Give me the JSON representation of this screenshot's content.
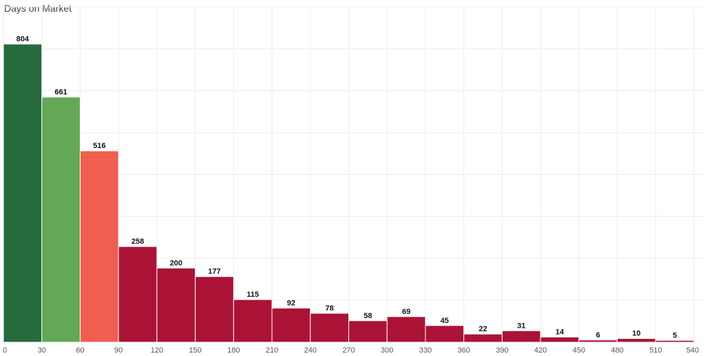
{
  "chart_data": {
    "type": "bar",
    "title": "Days on Market",
    "xlabel": "",
    "ylabel": "",
    "bin_edges": [
      0,
      30,
      60,
      90,
      120,
      150,
      180,
      210,
      240,
      270,
      300,
      330,
      360,
      390,
      420,
      450,
      480,
      510,
      540
    ],
    "values": [
      804,
      661,
      516,
      258,
      200,
      177,
      115,
      92,
      78,
      58,
      69,
      45,
      22,
      31,
      14,
      6,
      10,
      5
    ],
    "bar_colors": [
      "#256b3e",
      "#62a857",
      "#f05e50",
      "#ab1336",
      "#ab1336",
      "#ab1336",
      "#ab1336",
      "#ab1336",
      "#ab1336",
      "#ab1336",
      "#ab1336",
      "#ab1336",
      "#ab1336",
      "#ab1336",
      "#ab1336",
      "#ab1336",
      "#ab1336",
      "#ab1336"
    ],
    "xlim": [
      0,
      540
    ],
    "ylim": [
      0,
      804
    ],
    "grid": true,
    "legend": false,
    "data_labels": true
  }
}
